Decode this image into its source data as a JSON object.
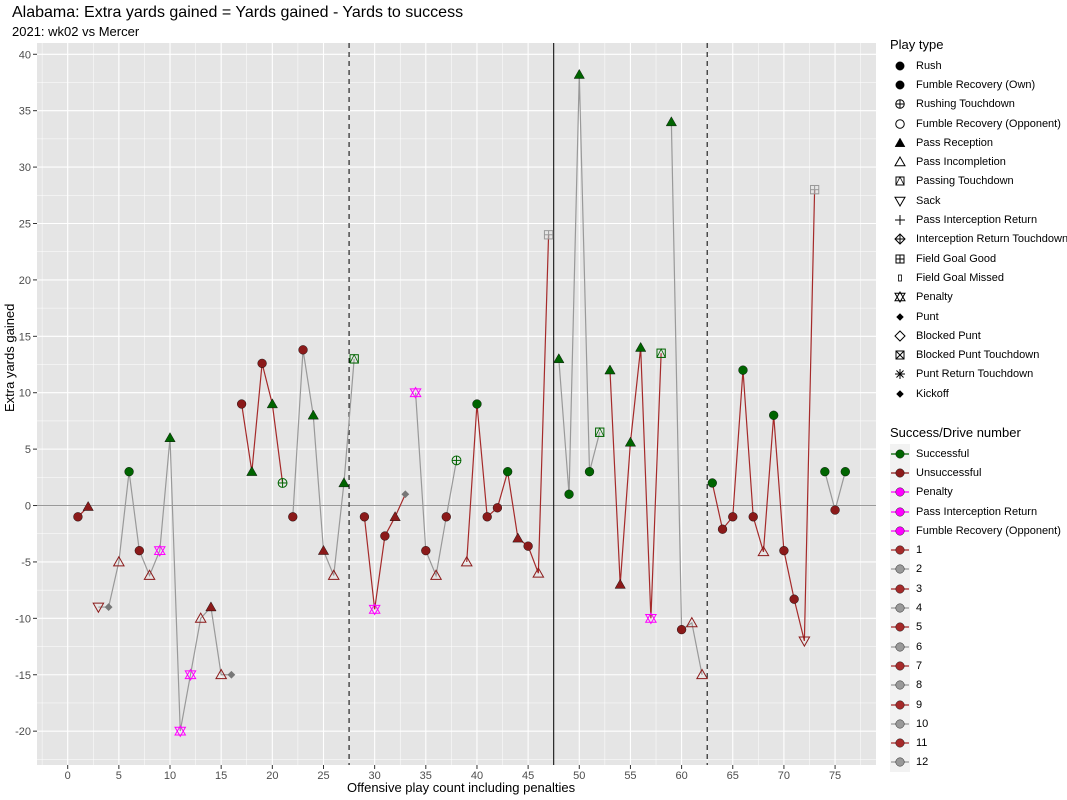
{
  "chart_data": {
    "type": "scatter",
    "title": "Alabama: Extra yards gained = Yards gained - Yards to success",
    "subtitle": "2021: wk02 vs Mercer",
    "xlabel": "Offensive play count including penalties",
    "ylabel": "Extra yards gained",
    "xlim": [
      -3,
      79
    ],
    "ylim": [
      -23,
      41
    ],
    "x_ticks": [
      "0",
      "5",
      "10",
      "15",
      "20",
      "25",
      "30",
      "35",
      "40",
      "45",
      "50",
      "55",
      "60",
      "65",
      "70",
      "75"
    ],
    "y_ticks": [
      "-20",
      "-15",
      "-10",
      "-5",
      "0",
      "5",
      "10",
      "15",
      "20",
      "25",
      "30",
      "35",
      "40"
    ],
    "grid": true,
    "vlines_dashed": [
      27.5,
      62.5
    ],
    "vline_solid": 47.5,
    "hline": 0,
    "colors": {
      "successful": "#006400",
      "unsuccessful": "#8B1A1A",
      "penalty": "#FF00FF",
      "odd_drive_line": "#A52A2A",
      "even_drive_line": "#999999",
      "neutral": "#777777"
    },
    "drives": [
      {
        "drive": 1,
        "plays": [
          1,
          2
        ]
      },
      {
        "drive": 2,
        "plays": [
          3,
          4,
          5,
          6,
          7,
          8,
          9,
          10,
          11,
          12,
          13,
          14,
          15,
          16
        ]
      },
      {
        "drive": 3,
        "plays": [
          17,
          18,
          19,
          20,
          21
        ]
      },
      {
        "drive": 4,
        "plays": [
          22,
          23,
          24,
          25,
          26,
          27,
          28
        ]
      },
      {
        "drive": 5,
        "plays": [
          29,
          30,
          31,
          32,
          33
        ]
      },
      {
        "drive": 6,
        "plays": [
          34,
          35,
          36,
          37,
          38
        ]
      },
      {
        "drive": 7,
        "plays": [
          39,
          40,
          41,
          42,
          43,
          44,
          45,
          46,
          47
        ]
      },
      {
        "drive": 8,
        "plays": [
          48,
          49,
          50,
          51,
          52
        ]
      },
      {
        "drive": 9,
        "plays": [
          53,
          54,
          55,
          56,
          57,
          58
        ]
      },
      {
        "drive": 10,
        "plays": [
          59,
          60,
          61,
          62
        ]
      },
      {
        "drive": 11,
        "plays": [
          63,
          64,
          65,
          66,
          67,
          68,
          69,
          70,
          71,
          72,
          73
        ]
      },
      {
        "drive": 12,
        "plays": [
          74,
          75,
          76
        ]
      }
    ],
    "points": [
      {
        "x": 1,
        "y": -1,
        "shape": "rush",
        "status": "unsuccessful"
      },
      {
        "x": 2,
        "y": -0.1,
        "shape": "pass_rec",
        "status": "unsuccessful"
      },
      {
        "x": 3,
        "y": -9,
        "shape": "sack",
        "status": "unsuccessful"
      },
      {
        "x": 4,
        "y": -9,
        "shape": "punt",
        "status": "neutral"
      },
      {
        "x": 5,
        "y": -5,
        "shape": "pass_inc",
        "status": "unsuccessful"
      },
      {
        "x": 6,
        "y": 3,
        "shape": "rush",
        "status": "successful"
      },
      {
        "x": 7,
        "y": -4,
        "shape": "rush",
        "status": "unsuccessful"
      },
      {
        "x": 8,
        "y": -6.2,
        "shape": "pass_inc",
        "status": "unsuccessful"
      },
      {
        "x": 9,
        "y": -4,
        "shape": "penalty",
        "status": "penalty"
      },
      {
        "x": 10,
        "y": 6,
        "shape": "pass_rec",
        "status": "successful"
      },
      {
        "x": 11,
        "y": -20,
        "shape": "penalty",
        "status": "penalty"
      },
      {
        "x": 12,
        "y": -15,
        "shape": "penalty",
        "status": "penalty"
      },
      {
        "x": 13,
        "y": -10,
        "shape": "pass_inc",
        "status": "unsuccessful"
      },
      {
        "x": 14,
        "y": -9,
        "shape": "pass_rec",
        "status": "unsuccessful"
      },
      {
        "x": 15,
        "y": -15,
        "shape": "pass_inc",
        "status": "unsuccessful"
      },
      {
        "x": 16,
        "y": -15,
        "shape": "punt",
        "status": "neutral"
      },
      {
        "x": 17,
        "y": 9,
        "shape": "rush",
        "status": "unsuccessful"
      },
      {
        "x": 18,
        "y": 3,
        "shape": "pass_rec",
        "status": "successful"
      },
      {
        "x": 19,
        "y": 12.6,
        "shape": "rush",
        "status": "unsuccessful"
      },
      {
        "x": 20,
        "y": 9,
        "shape": "pass_rec",
        "status": "successful"
      },
      {
        "x": 21,
        "y": 2,
        "shape": "rush_td",
        "status": "successful"
      },
      {
        "x": 22,
        "y": -1,
        "shape": "rush",
        "status": "unsuccessful"
      },
      {
        "x": 23,
        "y": 13.8,
        "shape": "rush",
        "status": "unsuccessful"
      },
      {
        "x": 24,
        "y": 8,
        "shape": "pass_rec",
        "status": "successful"
      },
      {
        "x": 25,
        "y": -4,
        "shape": "pass_rec",
        "status": "unsuccessful"
      },
      {
        "x": 26,
        "y": -6.2,
        "shape": "pass_inc",
        "status": "unsuccessful"
      },
      {
        "x": 27,
        "y": 2,
        "shape": "pass_rec",
        "status": "successful"
      },
      {
        "x": 28,
        "y": 13,
        "shape": "pass_td",
        "status": "successful"
      },
      {
        "x": 29,
        "y": -1,
        "shape": "rush",
        "status": "unsuccessful"
      },
      {
        "x": 30,
        "y": -9.2,
        "shape": "penalty",
        "status": "penalty"
      },
      {
        "x": 31,
        "y": -2.7,
        "shape": "rush",
        "status": "unsuccessful"
      },
      {
        "x": 32,
        "y": -1,
        "shape": "pass_rec",
        "status": "unsuccessful"
      },
      {
        "x": 33,
        "y": 1,
        "shape": "punt",
        "status": "neutral"
      },
      {
        "x": 34,
        "y": 10,
        "shape": "penalty",
        "status": "penalty"
      },
      {
        "x": 35,
        "y": -4,
        "shape": "rush",
        "status": "unsuccessful"
      },
      {
        "x": 36,
        "y": -6.2,
        "shape": "pass_inc",
        "status": "unsuccessful"
      },
      {
        "x": 37,
        "y": -1,
        "shape": "rush",
        "status": "unsuccessful"
      },
      {
        "x": 38,
        "y": 4,
        "shape": "rush_td",
        "status": "successful"
      },
      {
        "x": 39,
        "y": -5,
        "shape": "pass_inc",
        "status": "unsuccessful"
      },
      {
        "x": 40,
        "y": 9,
        "shape": "rush",
        "status": "successful"
      },
      {
        "x": 41,
        "y": -1,
        "shape": "rush",
        "status": "unsuccessful"
      },
      {
        "x": 42,
        "y": -0.2,
        "shape": "rush",
        "status": "unsuccessful"
      },
      {
        "x": 43,
        "y": 3,
        "shape": "rush",
        "status": "successful"
      },
      {
        "x": 44,
        "y": -2.9,
        "shape": "pass_rec",
        "status": "unsuccessful"
      },
      {
        "x": 45,
        "y": -3.6,
        "shape": "rush",
        "status": "unsuccessful"
      },
      {
        "x": 46,
        "y": -6,
        "shape": "pass_inc",
        "status": "unsuccessful"
      },
      {
        "x": 47,
        "y": 24,
        "shape": "fg_good",
        "status": "neutral"
      },
      {
        "x": 48,
        "y": 13,
        "shape": "pass_rec",
        "status": "successful"
      },
      {
        "x": 49,
        "y": 1,
        "shape": "rush",
        "status": "successful"
      },
      {
        "x": 50,
        "y": 38.2,
        "shape": "pass_rec",
        "status": "successful"
      },
      {
        "x": 51,
        "y": 3,
        "shape": "rush",
        "status": "successful"
      },
      {
        "x": 52,
        "y": 6.5,
        "shape": "pass_td",
        "status": "successful"
      },
      {
        "x": 53,
        "y": 12,
        "shape": "pass_rec",
        "status": "successful"
      },
      {
        "x": 54,
        "y": -7,
        "shape": "pass_rec",
        "status": "unsuccessful"
      },
      {
        "x": 55,
        "y": 5.6,
        "shape": "pass_rec",
        "status": "successful"
      },
      {
        "x": 56,
        "y": 14,
        "shape": "pass_rec",
        "status": "successful"
      },
      {
        "x": 57,
        "y": -10,
        "shape": "penalty",
        "status": "penalty"
      },
      {
        "x": 58,
        "y": 13.5,
        "shape": "pass_td",
        "status": "successful"
      },
      {
        "x": 59,
        "y": 34,
        "shape": "pass_rec",
        "status": "successful"
      },
      {
        "x": 60,
        "y": -11,
        "shape": "rush",
        "status": "unsuccessful"
      },
      {
        "x": 61,
        "y": -10.4,
        "shape": "pass_inc",
        "status": "unsuccessful"
      },
      {
        "x": 62,
        "y": -15,
        "shape": "pass_inc",
        "status": "unsuccessful"
      },
      {
        "x": 63,
        "y": 2,
        "shape": "rush",
        "status": "successful"
      },
      {
        "x": 64,
        "y": -2.1,
        "shape": "rush",
        "status": "unsuccessful"
      },
      {
        "x": 65,
        "y": -1,
        "shape": "rush",
        "status": "unsuccessful"
      },
      {
        "x": 66,
        "y": 12,
        "shape": "rush",
        "status": "successful"
      },
      {
        "x": 67,
        "y": -1,
        "shape": "rush",
        "status": "unsuccessful"
      },
      {
        "x": 68,
        "y": -4.1,
        "shape": "pass_inc",
        "status": "unsuccessful"
      },
      {
        "x": 69,
        "y": 8,
        "shape": "rush",
        "status": "successful"
      },
      {
        "x": 70,
        "y": -4,
        "shape": "rush",
        "status": "unsuccessful"
      },
      {
        "x": 71,
        "y": -8.3,
        "shape": "rush",
        "status": "unsuccessful"
      },
      {
        "x": 72,
        "y": -12,
        "shape": "sack",
        "status": "unsuccessful"
      },
      {
        "x": 73,
        "y": 28,
        "shape": "fg_good",
        "status": "neutral"
      },
      {
        "x": 74,
        "y": 3,
        "shape": "rush",
        "status": "successful"
      },
      {
        "x": 75,
        "y": -0.4,
        "shape": "rush",
        "status": "unsuccessful"
      },
      {
        "x": 76,
        "y": 3,
        "shape": "rush",
        "status": "successful"
      }
    ],
    "legend_play_type": {
      "title": "Play type",
      "items": [
        {
          "label": "Rush",
          "shape": "rush"
        },
        {
          "label": "Fumble Recovery (Own)",
          "shape": "rush"
        },
        {
          "label": "Rushing Touchdown",
          "shape": "rush_td"
        },
        {
          "label": "Fumble Recovery (Opponent)",
          "shape": "open_circle"
        },
        {
          "label": "Pass Reception",
          "shape": "pass_rec"
        },
        {
          "label": "Pass Incompletion",
          "shape": "pass_inc"
        },
        {
          "label": "Passing Touchdown",
          "shape": "pass_td"
        },
        {
          "label": "Sack",
          "shape": "sack"
        },
        {
          "label": "Pass Interception Return",
          "shape": "plus"
        },
        {
          "label": "Interception Return Touchdown",
          "shape": "diamond_plus"
        },
        {
          "label": "Field Goal Good",
          "shape": "fg_good"
        },
        {
          "label": "Field Goal Missed",
          "shape": "fg_missed"
        },
        {
          "label": "Penalty",
          "shape": "penalty"
        },
        {
          "label": "Punt",
          "shape": "punt"
        },
        {
          "label": "Blocked Punt",
          "shape": "open_diamond"
        },
        {
          "label": "Blocked Punt Touchdown",
          "shape": "box_x"
        },
        {
          "label": "Punt Return Touchdown",
          "shape": "asterisk"
        },
        {
          "label": "Kickoff",
          "shape": "punt"
        }
      ]
    },
    "legend_success": {
      "title": "Success/Drive number",
      "items": [
        {
          "label": "Successful",
          "color": "#006400"
        },
        {
          "label": "Unsuccessful",
          "color": "#8B1A1A"
        },
        {
          "label": "Penalty",
          "color": "#FF00FF"
        },
        {
          "label": "Pass Interception Return",
          "color": "#FF00FF"
        },
        {
          "label": "Fumble Recovery (Opponent)",
          "color": "#FF00FF"
        },
        {
          "label": "1",
          "color": "#A52A2A"
        },
        {
          "label": "2",
          "color": "#999999"
        },
        {
          "label": "3",
          "color": "#A52A2A"
        },
        {
          "label": "4",
          "color": "#999999"
        },
        {
          "label": "5",
          "color": "#A52A2A"
        },
        {
          "label": "6",
          "color": "#999999"
        },
        {
          "label": "7",
          "color": "#A52A2A"
        },
        {
          "label": "8",
          "color": "#999999"
        },
        {
          "label": "9",
          "color": "#A52A2A"
        },
        {
          "label": "10",
          "color": "#999999"
        },
        {
          "label": "11",
          "color": "#A52A2A"
        },
        {
          "label": "12",
          "color": "#999999"
        }
      ]
    }
  }
}
